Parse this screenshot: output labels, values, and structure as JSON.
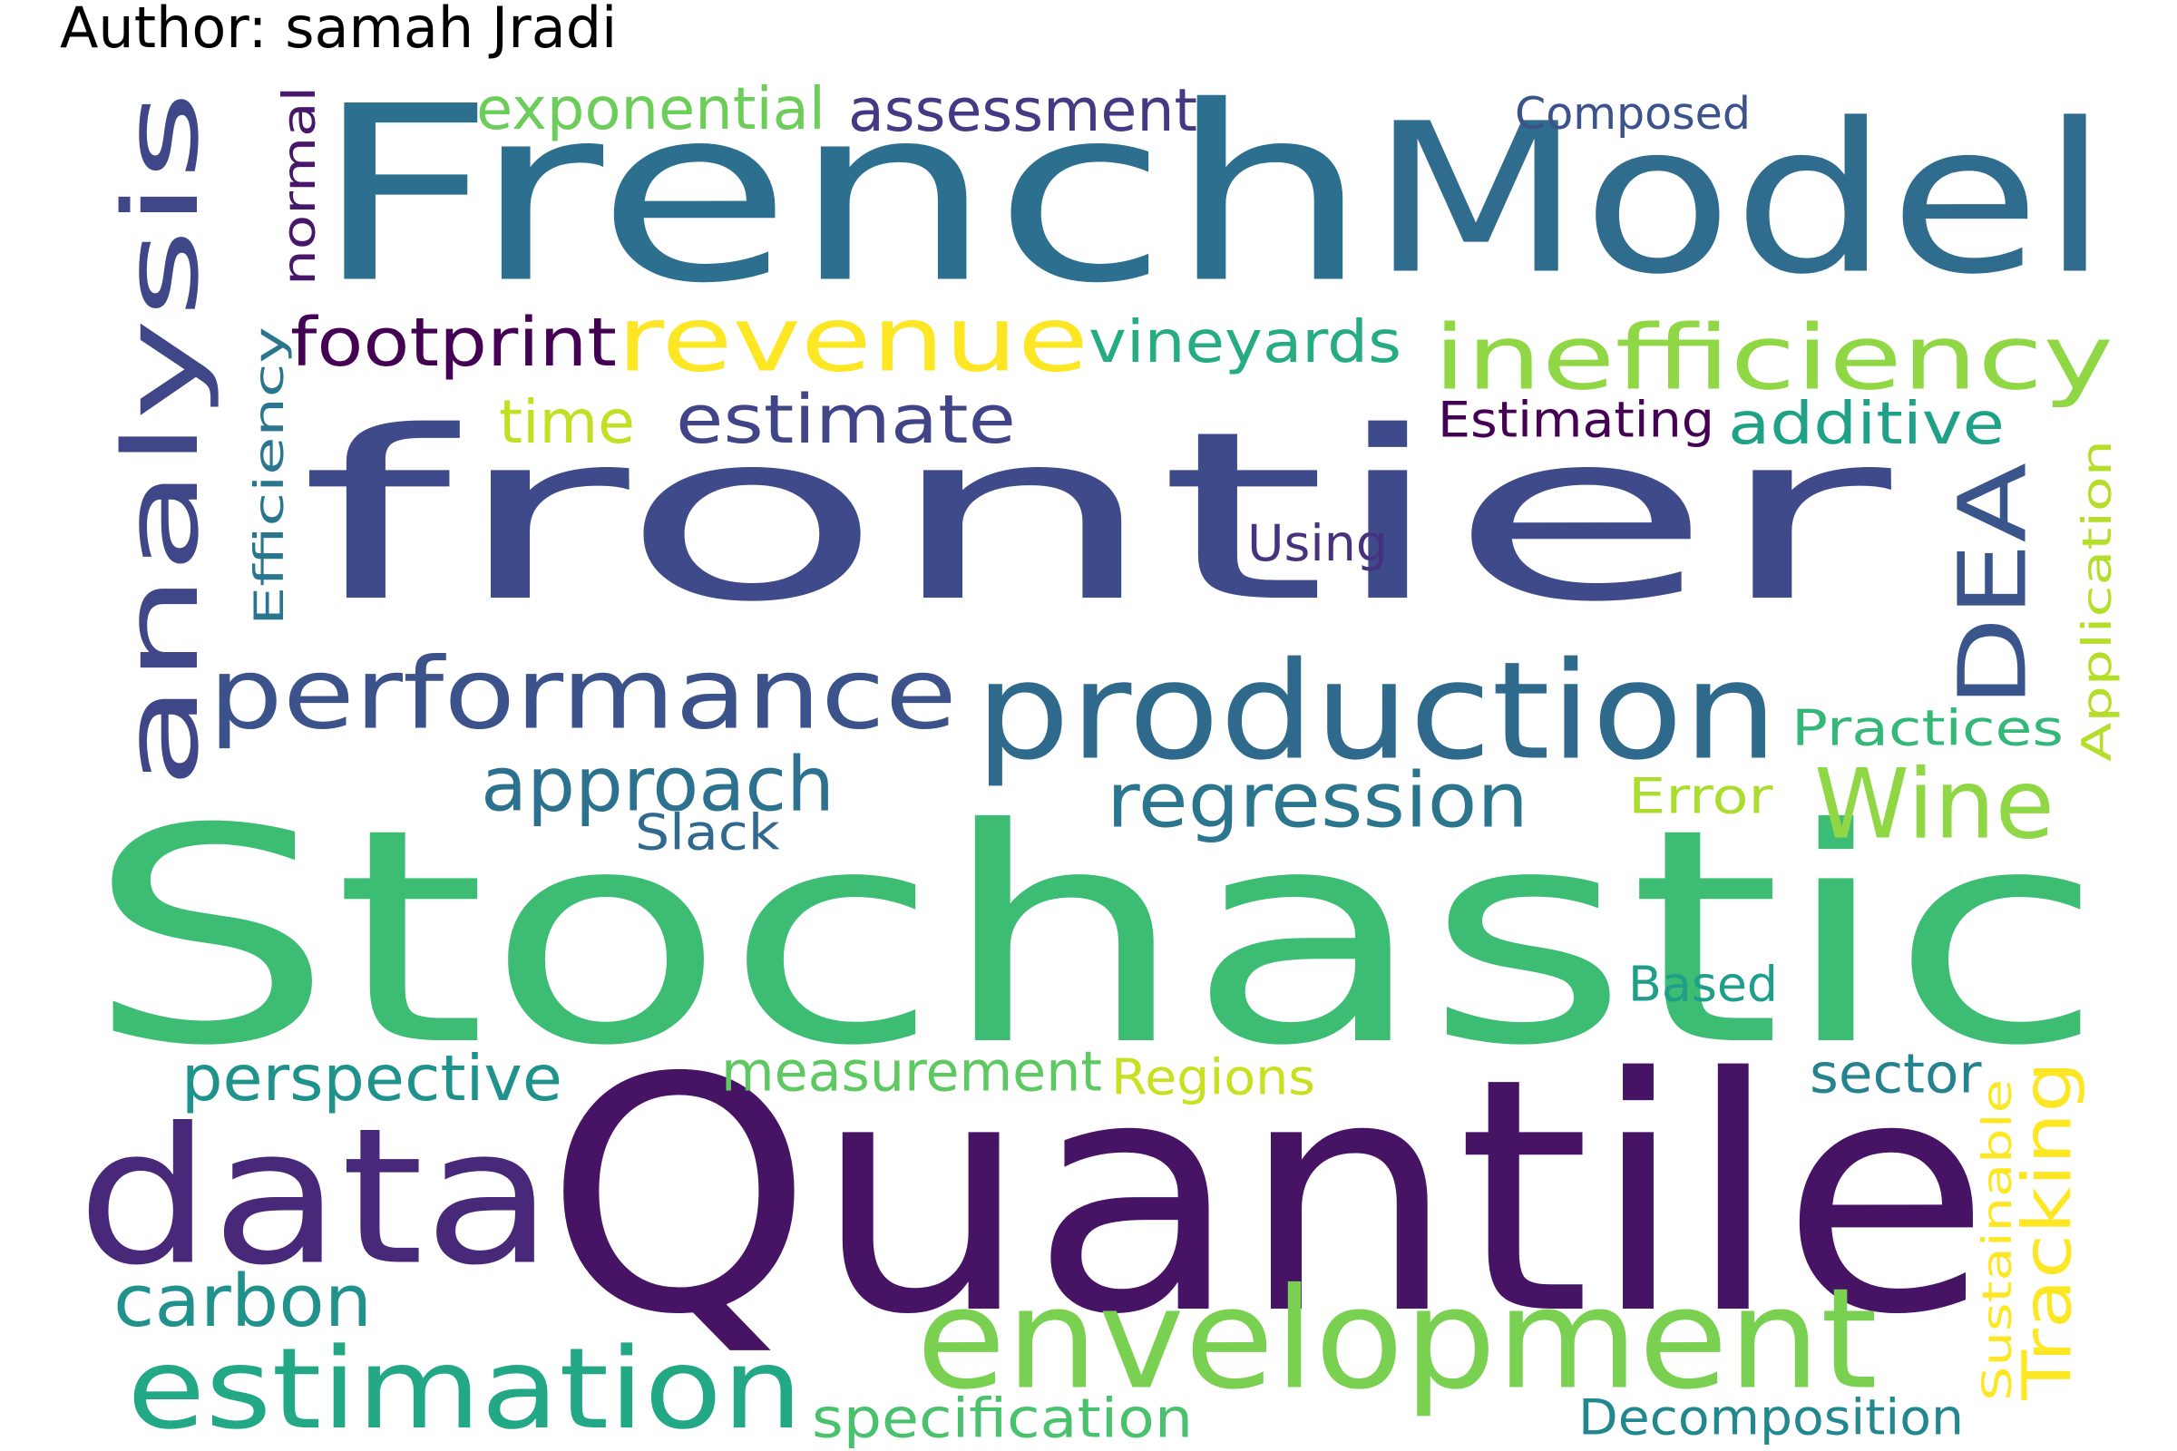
{
  "header": {
    "author": "Author: samah Jradi"
  },
  "cloud": {
    "words": [
      {
        "text": "Stochastic",
        "color": "#3dbc74"
      },
      {
        "text": "Quantile",
        "color": "#471365"
      },
      {
        "text": "frontier",
        "color": "#3e4a89"
      },
      {
        "text": "French",
        "color": "#2d6f8e"
      },
      {
        "text": "Model",
        "color": "#2f6c8e"
      },
      {
        "text": "production",
        "color": "#2f6a8d"
      },
      {
        "text": "analysis",
        "color": "#3f4788"
      },
      {
        "text": "data",
        "color": "#482878"
      },
      {
        "text": "envelopment",
        "color": "#7ad151"
      },
      {
        "text": "performance",
        "color": "#3b528b"
      },
      {
        "text": "estimation",
        "color": "#22a884"
      },
      {
        "text": "revenue",
        "color": "#fde725"
      },
      {
        "text": "inefficiency",
        "color": "#8fd744"
      },
      {
        "text": "DEA",
        "color": "#3a548c"
      },
      {
        "text": "Wine",
        "color": "#8fd744"
      },
      {
        "text": "approach",
        "color": "#2c718e"
      },
      {
        "text": "regression",
        "color": "#2b758e"
      },
      {
        "text": "estimate",
        "color": "#414487"
      },
      {
        "text": "carbon",
        "color": "#21918c"
      },
      {
        "text": "Tracking",
        "color": "#fde725"
      },
      {
        "text": "assessment",
        "color": "#443983"
      },
      {
        "text": "exponential",
        "color": "#6ccd5a"
      },
      {
        "text": "footprint",
        "color": "#440154"
      },
      {
        "text": "vineyards",
        "color": "#25ac82"
      },
      {
        "text": "additive",
        "color": "#1fa187"
      },
      {
        "text": "normal",
        "color": "#481769"
      },
      {
        "text": "measurement",
        "color": "#5ec962"
      },
      {
        "text": "perspective",
        "color": "#20928c"
      },
      {
        "text": "time",
        "color": "#c2df23"
      },
      {
        "text": "Composed",
        "color": "#3b528b"
      },
      {
        "text": "Efficiency",
        "color": "#2a768e"
      },
      {
        "text": "Estimating",
        "color": "#440154"
      },
      {
        "text": "Using",
        "color": "#46327e"
      },
      {
        "text": "Application",
        "color": "#b5de2b"
      },
      {
        "text": "Practices",
        "color": "#35b779"
      },
      {
        "text": "Error",
        "color": "#addc30"
      },
      {
        "text": "Slack",
        "color": "#31688e"
      },
      {
        "text": "Based",
        "color": "#1f9e89"
      },
      {
        "text": "sector",
        "color": "#26828e"
      },
      {
        "text": "Regions",
        "color": "#c8e020"
      },
      {
        "text": "Sustainable",
        "color": "#fde725"
      },
      {
        "text": "specification",
        "color": "#4ac16d"
      },
      {
        "text": "Decomposition",
        "color": "#23888e"
      }
    ]
  }
}
